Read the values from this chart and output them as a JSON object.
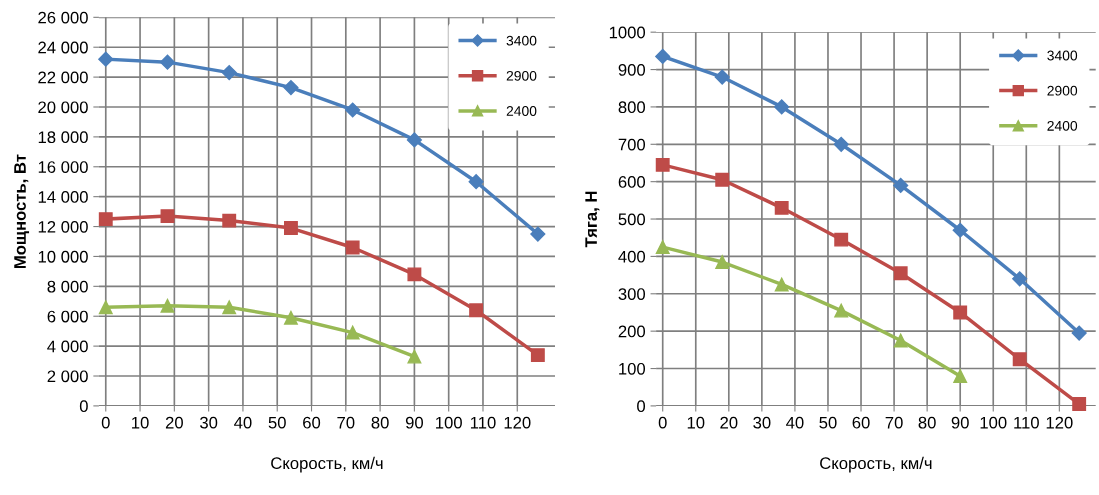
{
  "chart_data": [
    {
      "type": "line",
      "xlabel": "Скорость, км/ч",
      "ylabel": "Мощность, Вт",
      "x": [
        0,
        18,
        36,
        54,
        72,
        90,
        108,
        126
      ],
      "xlim": [
        -2,
        131
      ],
      "xticks": [
        0,
        10,
        20,
        30,
        40,
        50,
        60,
        70,
        80,
        90,
        100,
        110,
        120
      ],
      "ylim": [
        0,
        26000
      ],
      "yticks": [
        {
          "value": 0,
          "label": "0"
        },
        {
          "value": 2000,
          "label": "2 000"
        },
        {
          "value": 4000,
          "label": "4 000"
        },
        {
          "value": 6000,
          "label": "6 000"
        },
        {
          "value": 8000,
          "label": "8 000"
        },
        {
          "value": 10000,
          "label": "10 000"
        },
        {
          "value": 12000,
          "label": "12 000"
        },
        {
          "value": 14000,
          "label": "14 000"
        },
        {
          "value": 16000,
          "label": "16 000"
        },
        {
          "value": 18000,
          "label": "18 000"
        },
        {
          "value": 20000,
          "label": "20 000"
        },
        {
          "value": 22000,
          "label": "22 000"
        },
        {
          "value": 24000,
          "label": "24 000"
        },
        {
          "value": 26000,
          "label": "26 000"
        }
      ],
      "grid": true,
      "legend": "top right",
      "line_style": "solid",
      "series": [
        {
          "name": "3400",
          "color": "#4a7ebb",
          "marker": "diamond",
          "values": [
            23200,
            23000,
            22300,
            21300,
            19800,
            17800,
            15000,
            11500
          ]
        },
        {
          "name": "2900",
          "color": "#be4b48",
          "marker": "square",
          "values": [
            12500,
            12700,
            12400,
            11900,
            10600,
            8800,
            6400,
            3400
          ]
        },
        {
          "name": "2400",
          "color": "#98b954",
          "marker": "triangle",
          "values": [
            6600,
            6700,
            6600,
            5900,
            4900,
            3300,
            null,
            null
          ]
        }
      ]
    },
    {
      "type": "line",
      "xlabel": "Скорость, км/ч",
      "ylabel": "Тяга, Н",
      "x": [
        0,
        18,
        36,
        54,
        72,
        90,
        108,
        126
      ],
      "xlim": [
        -2,
        131
      ],
      "xticks": [
        0,
        10,
        20,
        30,
        40,
        50,
        60,
        70,
        80,
        90,
        100,
        110,
        120
      ],
      "ylim": [
        0,
        1000
      ],
      "yticks": [
        0,
        100,
        200,
        300,
        400,
        500,
        600,
        700,
        800,
        900,
        1000
      ],
      "grid": true,
      "legend": "top right",
      "line_style": "solid",
      "series": [
        {
          "name": "3400",
          "color": "#4a7ebb",
          "marker": "diamond",
          "values": [
            935,
            880,
            800,
            700,
            590,
            470,
            340,
            195
          ]
        },
        {
          "name": "2900",
          "color": "#be4b48",
          "marker": "square",
          "values": [
            645,
            605,
            530,
            445,
            355,
            250,
            125,
            5
          ]
        },
        {
          "name": "2400",
          "color": "#98b954",
          "marker": "triangle",
          "values": [
            425,
            385,
            325,
            255,
            175,
            80,
            null,
            null
          ]
        }
      ]
    }
  ]
}
